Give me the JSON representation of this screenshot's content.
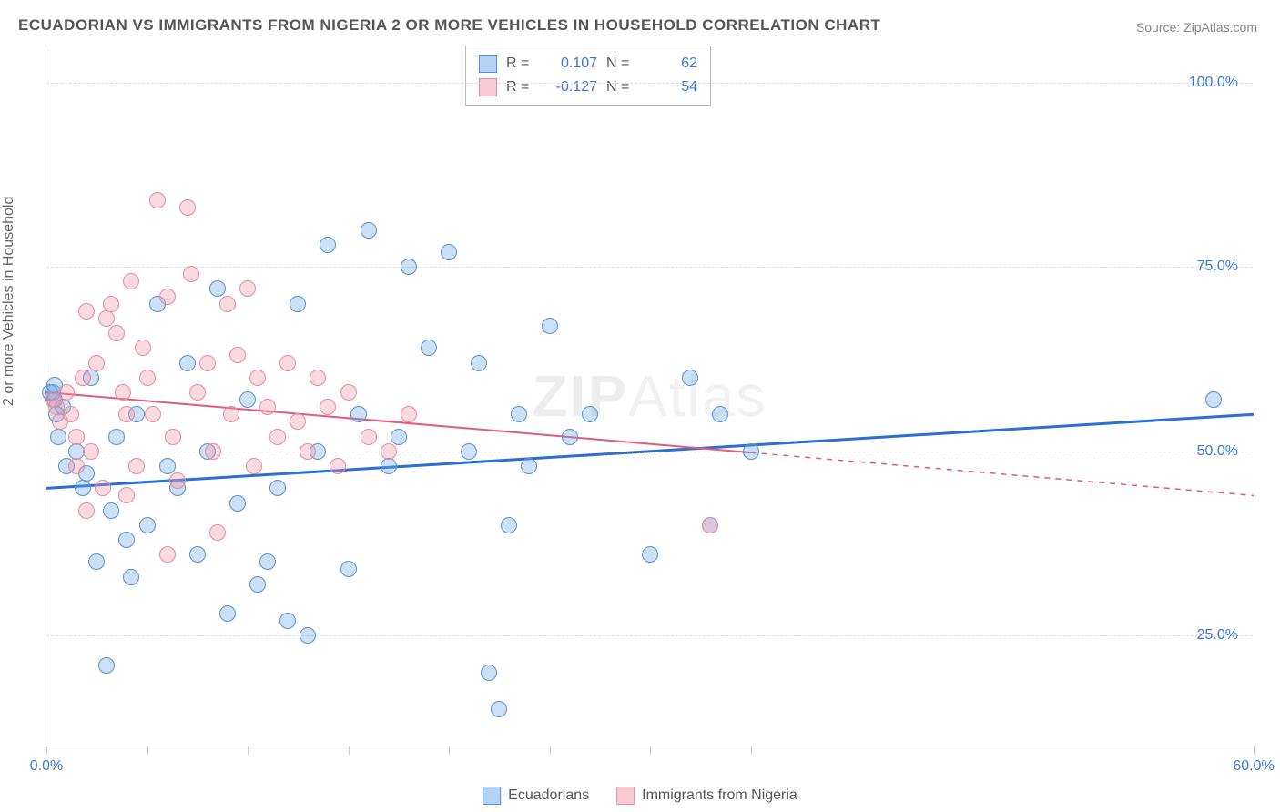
{
  "title": "ECUADORIAN VS IMMIGRANTS FROM NIGERIA 2 OR MORE VEHICLES IN HOUSEHOLD CORRELATION CHART",
  "source": "Source: ZipAtlas.com",
  "watermark_zip": "ZIP",
  "watermark_atlas": "Atlas",
  "ylabel": "2 or more Vehicles in Household",
  "chart": {
    "type": "scatter",
    "xlim": [
      0,
      60
    ],
    "ylim": [
      10,
      105
    ],
    "x_ticks": [
      0,
      5,
      10,
      15,
      20,
      25,
      30,
      35,
      60
    ],
    "x_tick_labels": {
      "0": "0.0%",
      "60": "60.0%"
    },
    "y_ticks": [
      25,
      50,
      75,
      100
    ],
    "y_tick_labels": {
      "25": "25.0%",
      "50": "50.0%",
      "75": "75.0%",
      "100": "100.0%"
    },
    "background_color": "#ffffff",
    "grid_color": "#dddddd",
    "marker_radius": 9,
    "series": [
      {
        "name": "Ecuadorians",
        "color_fill": "rgba(110,165,230,0.35)",
        "color_stroke": "#5a90d0",
        "R": "0.107",
        "N": "62",
        "trend": {
          "x0": 0,
          "y0": 45,
          "x1": 60,
          "y1": 55,
          "solid_until_x": 60,
          "color": "#2b6fd6",
          "width": 3
        },
        "points": [
          [
            0.2,
            58
          ],
          [
            0.4,
            57
          ],
          [
            0.5,
            55
          ],
          [
            0.6,
            52
          ],
          [
            0.8,
            56
          ],
          [
            1.0,
            48
          ],
          [
            1.5,
            50
          ],
          [
            1.8,
            45
          ],
          [
            2.0,
            47
          ],
          [
            2.2,
            60
          ],
          [
            2.5,
            35
          ],
          [
            3.0,
            21
          ],
          [
            3.2,
            42
          ],
          [
            3.5,
            52
          ],
          [
            4.0,
            38
          ],
          [
            4.2,
            33
          ],
          [
            4.5,
            55
          ],
          [
            5.0,
            40
          ],
          [
            5.5,
            70
          ],
          [
            6.0,
            48
          ],
          [
            6.5,
            45
          ],
          [
            7.0,
            62
          ],
          [
            7.5,
            36
          ],
          [
            8.0,
            50
          ],
          [
            8.5,
            72
          ],
          [
            9.0,
            28
          ],
          [
            9.5,
            43
          ],
          [
            10.0,
            57
          ],
          [
            10.5,
            32
          ],
          [
            11.0,
            35
          ],
          [
            11.5,
            45
          ],
          [
            12.0,
            27
          ],
          [
            12.5,
            70
          ],
          [
            13.0,
            25
          ],
          [
            13.5,
            50
          ],
          [
            14.0,
            78
          ],
          [
            15.0,
            34
          ],
          [
            15.5,
            55
          ],
          [
            16.0,
            80
          ],
          [
            17.0,
            48
          ],
          [
            17.5,
            52
          ],
          [
            18.0,
            75
          ],
          [
            19.0,
            64
          ],
          [
            20.0,
            77
          ],
          [
            21.0,
            50
          ],
          [
            21.5,
            62
          ],
          [
            22.0,
            20
          ],
          [
            22.5,
            15
          ],
          [
            23.0,
            40
          ],
          [
            23.5,
            55
          ],
          [
            24.0,
            48
          ],
          [
            25.0,
            67
          ],
          [
            26.0,
            52
          ],
          [
            27.0,
            55
          ],
          [
            30.0,
            36
          ],
          [
            32.0,
            60
          ],
          [
            33.0,
            40
          ],
          [
            33.5,
            55
          ],
          [
            35.0,
            50
          ],
          [
            58.0,
            57
          ],
          [
            0.3,
            58
          ],
          [
            0.4,
            59
          ]
        ]
      },
      {
        "name": "Immigrants from Nigeria",
        "color_fill": "rgba(240,150,170,0.35)",
        "color_stroke": "#e88aa0",
        "R": "-0.127",
        "N": "54",
        "trend": {
          "x0": 0,
          "y0": 58,
          "x1": 60,
          "y1": 44,
          "solid_until_x": 35,
          "color": "#e45a7a",
          "width": 2
        },
        "points": [
          [
            0.3,
            57
          ],
          [
            0.5,
            56
          ],
          [
            0.7,
            54
          ],
          [
            1.0,
            58
          ],
          [
            1.2,
            55
          ],
          [
            1.5,
            52
          ],
          [
            1.8,
            60
          ],
          [
            2.0,
            69
          ],
          [
            2.2,
            50
          ],
          [
            2.5,
            62
          ],
          [
            2.8,
            45
          ],
          [
            3.0,
            68
          ],
          [
            3.2,
            70
          ],
          [
            3.5,
            66
          ],
          [
            3.8,
            58
          ],
          [
            4.0,
            55
          ],
          [
            4.2,
            73
          ],
          [
            4.5,
            48
          ],
          [
            4.8,
            64
          ],
          [
            5.0,
            60
          ],
          [
            5.3,
            55
          ],
          [
            5.5,
            84
          ],
          [
            6.0,
            71
          ],
          [
            6.3,
            52
          ],
          [
            6.5,
            46
          ],
          [
            7.0,
            83
          ],
          [
            7.2,
            74
          ],
          [
            7.5,
            58
          ],
          [
            8.0,
            62
          ],
          [
            8.3,
            50
          ],
          [
            8.5,
            39
          ],
          [
            9.0,
            70
          ],
          [
            9.2,
            55
          ],
          [
            9.5,
            63
          ],
          [
            10.0,
            72
          ],
          [
            10.3,
            48
          ],
          [
            10.5,
            60
          ],
          [
            11.0,
            56
          ],
          [
            11.5,
            52
          ],
          [
            12.0,
            62
          ],
          [
            12.5,
            54
          ],
          [
            13.0,
            50
          ],
          [
            13.5,
            60
          ],
          [
            14.0,
            56
          ],
          [
            14.5,
            48
          ],
          [
            15.0,
            58
          ],
          [
            16.0,
            52
          ],
          [
            17.0,
            50
          ],
          [
            18.0,
            55
          ],
          [
            2.0,
            42
          ],
          [
            6.0,
            36
          ],
          [
            4.0,
            44
          ],
          [
            1.5,
            48
          ],
          [
            33.0,
            40
          ]
        ]
      }
    ]
  },
  "stats_legend": {
    "r_label": "R =",
    "n_label": "N ="
  },
  "bottom_legend": {
    "s1": "Ecuadorians",
    "s2": "Immigrants from Nigeria"
  }
}
